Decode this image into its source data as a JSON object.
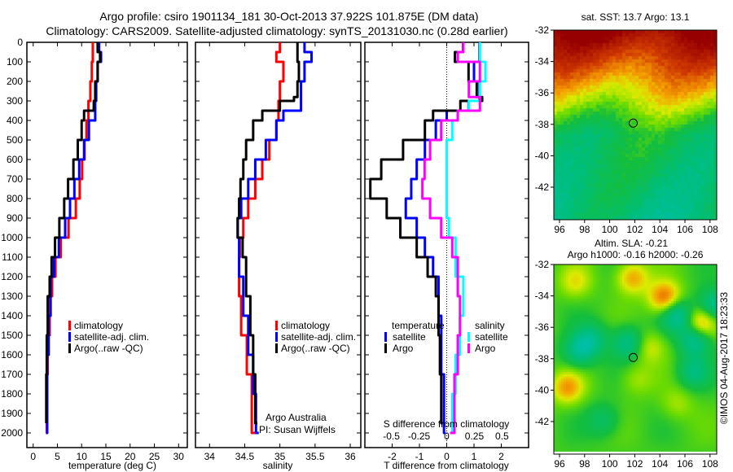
{
  "title": {
    "line1": "Argo profile: csiro 1901134_181 30-Oct-2013 37.922S 101.875E (DM data)",
    "line2": "Climatology: CARS2009. Satellite-adjusted climatology: synTS_20131030.nc (0.28d earlier)"
  },
  "colors": {
    "climatology": "#ff0000",
    "satellite": "#0000ff",
    "argo": "#000000",
    "sal_satellite": "#00ffff",
    "sal_argo": "#ff00ff"
  },
  "chart_data": [
    {
      "type": "line",
      "name": "temperature-profile",
      "xlabel": "temperature (deg C)",
      "ylabel": "depth",
      "xticks": [
        0,
        5,
        10,
        15,
        20,
        25,
        30
      ],
      "yticks": [
        0,
        100,
        200,
        300,
        400,
        500,
        600,
        700,
        800,
        900,
        1000,
        1100,
        1200,
        1300,
        1400,
        1500,
        1600,
        1700,
        1800,
        1900,
        2000
      ],
      "xlim": [
        -1.3,
        31.8
      ],
      "ylim": [
        2075,
        0
      ],
      "legend": [
        "climatology",
        "satellite-adj. clim.",
        "Argo(..raw -QC)"
      ],
      "series": [
        {
          "name": "climatology",
          "depth": [
            0,
            100,
            200,
            300,
            400,
            500,
            600,
            700,
            800,
            900,
            1000,
            1100,
            1200,
            1300,
            1500,
            1700,
            2000
          ],
          "values": [
            12.3,
            12.1,
            11.8,
            11.4,
            11.0,
            10.6,
            10.1,
            9.6,
            8.8,
            7.3,
            5.7,
            4.6,
            3.9,
            3.4,
            3.0,
            2.8,
            2.6
          ]
        },
        {
          "name": "satellite-adj. clim.",
          "depth": [
            0,
            50,
            100,
            200,
            300,
            400,
            500,
            600,
            700,
            800,
            900,
            1000,
            1100,
            1200,
            1400,
            1600,
            2000
          ],
          "values": [
            13.6,
            14.0,
            13.3,
            13.0,
            12.8,
            11.5,
            10.5,
            9.5,
            8.5,
            7.6,
            6.6,
            5.3,
            4.3,
            3.6,
            3.2,
            2.9,
            2.7
          ]
        },
        {
          "name": "Argo(..raw -QC)",
          "depth": [
            0,
            50,
            100,
            200,
            300,
            350,
            400,
            500,
            600,
            700,
            800,
            900,
            1000,
            1100,
            1200,
            1300,
            1500,
            1700,
            1950
          ],
          "values": [
            13.3,
            13.8,
            13.3,
            12.8,
            12.5,
            10.5,
            10.0,
            9.2,
            8.3,
            7.2,
            6.4,
            5.4,
            4.5,
            3.8,
            3.4,
            3.0,
            2.8,
            2.7,
            2.7
          ]
        }
      ]
    },
    {
      "type": "line",
      "name": "salinity-profile",
      "xlabel": "salinity",
      "xticks": [
        34,
        34.5,
        35,
        35.5,
        36
      ],
      "xlim": [
        33.8,
        36.15
      ],
      "ylim": [
        2075,
        0
      ],
      "legend": [
        "climatology",
        "satellite-adj. clim.",
        "Argo(..raw -QC)"
      ],
      "annotation": [
        "Argo Australia",
        "PI: Susan Wijffels"
      ],
      "series": [
        {
          "name": "climatology",
          "depth": [
            0,
            50,
            100,
            200,
            300,
            400,
            500,
            600,
            700,
            800,
            900,
            1000,
            1100,
            1300,
            1500,
            1700,
            2000
          ],
          "values": [
            35.0,
            34.95,
            35.05,
            35.0,
            34.98,
            34.95,
            34.85,
            34.75,
            34.65,
            34.55,
            34.48,
            34.43,
            34.42,
            34.45,
            34.53,
            34.6,
            34.68
          ]
        },
        {
          "name": "satellite-adj. clim.",
          "depth": [
            0,
            50,
            100,
            200,
            280,
            350,
            400,
            500,
            600,
            700,
            800,
            900,
            1000,
            1200,
            1400,
            1600,
            1800,
            2000
          ],
          "values": [
            35.35,
            35.45,
            35.35,
            35.3,
            35.3,
            35.05,
            34.95,
            34.8,
            34.65,
            34.55,
            34.45,
            34.4,
            34.42,
            34.48,
            34.55,
            34.62,
            34.66,
            34.7
          ]
        },
        {
          "name": "Argo(..raw -QC)",
          "depth": [
            0,
            100,
            200,
            280,
            300,
            350,
            400,
            500,
            600,
            700,
            800,
            900,
            1000,
            1100,
            1300,
            1500,
            1700,
            1950
          ],
          "values": [
            35.25,
            35.27,
            35.25,
            35.2,
            35.0,
            34.75,
            34.62,
            34.52,
            34.48,
            34.44,
            34.42,
            34.4,
            34.47,
            34.52,
            34.58,
            34.62,
            34.65,
            34.68
          ]
        }
      ]
    },
    {
      "type": "line",
      "name": "difference-profile",
      "xlabel": "T difference from climatology",
      "x2label": "S difference from climatology",
      "xticks": [
        -2,
        -1,
        0,
        1,
        2
      ],
      "x2ticks": [
        -0.5,
        -0.25,
        0,
        0.25,
        0.5
      ],
      "xlim": [
        -3,
        3
      ],
      "x2lim": [
        -0.74,
        0.74
      ],
      "ylim": [
        2075,
        0
      ],
      "legend": {
        "temperature_title": "temperature",
        "salinity_title": "salinity",
        "satellite": "satellite",
        "argo": "Argo"
      },
      "series": [
        {
          "name": "temperature satellite",
          "axis": "T",
          "depth": [
            0,
            100,
            200,
            300,
            350,
            400,
            500,
            600,
            700,
            800,
            900,
            1000,
            1100,
            1200,
            1400,
            1700,
            2000
          ],
          "values": [
            1.2,
            1.0,
            1.2,
            0.8,
            0.0,
            -0.4,
            -0.8,
            -1.1,
            -1.3,
            -1.5,
            -1.1,
            -0.8,
            -0.5,
            -0.3,
            -0.2,
            -0.1,
            -0.05
          ]
        },
        {
          "name": "temperature Argo",
          "axis": "T",
          "depth": [
            0,
            50,
            100,
            200,
            280,
            300,
            350,
            400,
            500,
            600,
            700,
            800,
            900,
            1000,
            1100,
            1200,
            1300,
            1500,
            1700,
            1950
          ],
          "values": [
            0.6,
            0.3,
            0.8,
            1.1,
            1.3,
            0.5,
            -0.5,
            -0.8,
            -1.6,
            -2.4,
            -2.8,
            -2.2,
            -1.7,
            -1.1,
            -0.7,
            -0.4,
            -0.3,
            -0.25,
            -0.2,
            -0.15
          ]
        },
        {
          "name": "salinity satellite",
          "axis": "S",
          "depth": [
            0,
            100,
            200,
            300,
            350,
            400,
            500,
            600,
            700,
            800,
            900,
            1000,
            1200,
            1400,
            1600,
            1800,
            2000
          ],
          "values": [
            0.3,
            0.35,
            0.3,
            0.2,
            0.1,
            0.05,
            0.0,
            0.0,
            0.0,
            0.0,
            0.02,
            0.08,
            0.15,
            0.12,
            0.08,
            0.05,
            0.03
          ]
        },
        {
          "name": "salinity Argo",
          "axis": "S",
          "depth": [
            0,
            50,
            100,
            200,
            280,
            350,
            400,
            500,
            600,
            700,
            800,
            900,
            1000,
            1100,
            1300,
            1500,
            1700,
            2000
          ],
          "values": [
            0.15,
            0.1,
            0.3,
            0.2,
            0.3,
            0.1,
            -0.05,
            -0.15,
            -0.2,
            -0.22,
            -0.15,
            -0.05,
            0.05,
            0.1,
            0.12,
            0.1,
            0.07,
            0.03
          ]
        }
      ]
    }
  ],
  "maps": {
    "sst": {
      "title": "sat. SST: 13.7 Argo: 13.1",
      "lat_ticks": [
        -32,
        -34,
        -36,
        -38,
        -40,
        -42
      ],
      "lon_ticks": [
        96,
        98,
        100,
        102,
        104,
        106,
        108
      ],
      "marker": [
        101.875,
        -37.922
      ]
    },
    "sla": {
      "title1": "Altim. SLA: -0.21",
      "title2": "Argo h1000: -0.16 h2000: -0.26",
      "lat_ticks": [
        -32,
        -34,
        -36,
        -38,
        -40,
        -42
      ],
      "lon_ticks": [
        96,
        98,
        100,
        102,
        104,
        106,
        108
      ],
      "marker": [
        101.875,
        -37.922
      ]
    }
  },
  "credit": "©IMOS 04-Aug-2017 18:23:33"
}
